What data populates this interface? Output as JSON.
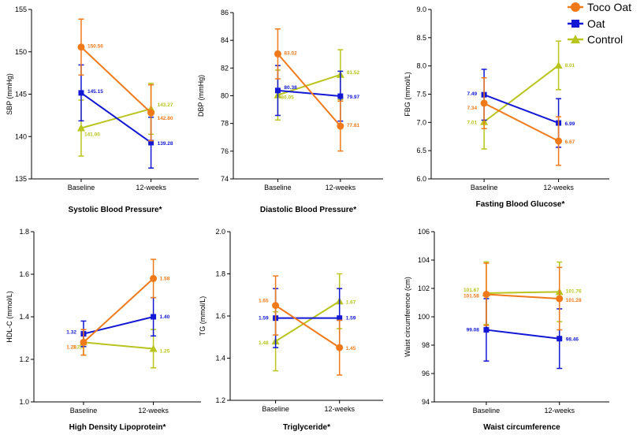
{
  "colors": {
    "Toco Oat": "#f07a1a",
    "Oat": "#1218d4",
    "Control": "#b9c41c"
  },
  "legend": [
    {
      "name": "Toco Oat",
      "marker": "circle"
    },
    {
      "name": "Oat",
      "marker": "square"
    },
    {
      "name": "Control",
      "marker": "triangle"
    }
  ],
  "chart_data": [
    {
      "type": "line",
      "title": "Systolic Blood Pressure*",
      "ylabel": "SBP (mmHg)",
      "categories": [
        "Baseline",
        "12-weeks"
      ],
      "ylim": [
        135,
        155
      ],
      "yticks": [
        135,
        140,
        145,
        150,
        155
      ],
      "yfmt": 0,
      "series": [
        {
          "name": "Toco Oat",
          "values": [
            150.56,
            142.8
          ],
          "labels": [
            "150.56",
            "142.80"
          ],
          "err": [
            3.3,
            3.3
          ]
        },
        {
          "name": "Oat",
          "values": [
            145.15,
            139.28
          ],
          "labels": [
            "145.15",
            "139.28"
          ],
          "err": [
            3.3,
            3.0
          ]
        },
        {
          "name": "Control",
          "values": [
            141.0,
            143.27
          ],
          "labels": [
            "141.00",
            "143.27"
          ],
          "err": [
            3.3,
            3.0
          ]
        }
      ]
    },
    {
      "type": "line",
      "title": "Diastolic Blood Pressure*",
      "ylabel": "DBP (mmHg)",
      "categories": [
        "Baseline",
        "12-weeks"
      ],
      "ylim": [
        74,
        86
      ],
      "yticks": [
        74,
        76,
        78,
        80,
        82,
        84,
        86
      ],
      "yfmt": 0,
      "series": [
        {
          "name": "Toco Oat",
          "values": [
            83.02,
            77.81
          ],
          "labels": [
            "83.02",
            "77.81"
          ],
          "err": [
            1.8,
            1.8
          ]
        },
        {
          "name": "Oat",
          "values": [
            80.38,
            79.97
          ],
          "labels": [
            "80.38",
            "79.97"
          ],
          "err": [
            1.8,
            1.8
          ]
        },
        {
          "name": "Control",
          "values": [
            80.05,
            81.52
          ],
          "labels": [
            "80.05",
            "81.52"
          ],
          "err": [
            1.8,
            1.8
          ]
        }
      ]
    },
    {
      "type": "line",
      "title": "Fasting Blood Glucose*",
      "ylabel": "FBG (mmol/L)",
      "categories": [
        "Baseline",
        "12-weeks"
      ],
      "ylim": [
        6.0,
        9.0
      ],
      "yticks": [
        6.0,
        6.5,
        7.0,
        7.5,
        8.0,
        8.5,
        9.0
      ],
      "yfmt": 1,
      "series": [
        {
          "name": "Toco Oat",
          "values": [
            7.34,
            6.67
          ],
          "labels": [
            "7.34",
            "6.67"
          ],
          "err": [
            0.45,
            0.43
          ]
        },
        {
          "name": "Oat",
          "values": [
            7.49,
            6.99
          ],
          "labels": [
            "7.49",
            "6.99"
          ],
          "err": [
            0.45,
            0.43
          ]
        },
        {
          "name": "Control",
          "values": [
            7.01,
            8.01
          ],
          "labels": [
            "7.01",
            "8.01"
          ],
          "err": [
            0.48,
            0.43
          ]
        }
      ]
    },
    {
      "type": "line",
      "title": "High Density Lipoprotein*",
      "ylabel": "HDL-C (mmol/L)",
      "categories": [
        "Baseline",
        "12-weeks"
      ],
      "ylim": [
        1.0,
        1.8
      ],
      "yticks": [
        1.0,
        1.2,
        1.4,
        1.6,
        1.8
      ],
      "yfmt": 1,
      "series": [
        {
          "name": "Toco Oat",
          "values": [
            1.28,
            1.58
          ],
          "labels": [
            "1.28",
            "1.58"
          ],
          "err": [
            0.06,
            0.09
          ]
        },
        {
          "name": "Oat",
          "values": [
            1.32,
            1.4
          ],
          "labels": [
            "1.32",
            "1.40"
          ],
          "err": [
            0.06,
            0.09
          ]
        },
        {
          "name": "Control",
          "values": [
            1.28,
            1.25
          ],
          "labels": [
            "1.28",
            "1.25"
          ],
          "err": [
            0.06,
            0.09
          ]
        }
      ]
    },
    {
      "type": "line",
      "title": "Triglyceride*",
      "ylabel": "TG (mmol/L)",
      "categories": [
        "Baseline",
        "12-weeks"
      ],
      "ylim": [
        1.2,
        2.0
      ],
      "yticks": [
        1.2,
        1.4,
        1.6,
        1.8,
        2.0
      ],
      "yfmt": 1,
      "series": [
        {
          "name": "Toco Oat",
          "values": [
            1.65,
            1.45
          ],
          "labels": [
            "1.65",
            "1.45"
          ],
          "err": [
            0.14,
            0.13
          ]
        },
        {
          "name": "Oat",
          "values": [
            1.59,
            1.59
          ],
          "labels": [
            "1.59",
            "1.59"
          ],
          "err": [
            0.14,
            0.14
          ]
        },
        {
          "name": "Control",
          "values": [
            1.48,
            1.67
          ],
          "labels": [
            "1.48",
            "1.67"
          ],
          "err": [
            0.14,
            0.13
          ]
        }
      ]
    },
    {
      "type": "line",
      "title": "Waist circumference",
      "ylabel": "Waist circumference (cm)",
      "categories": [
        "Baseline",
        "12-weeks"
      ],
      "ylim": [
        94,
        106
      ],
      "yticks": [
        94,
        96,
        98,
        100,
        102,
        104,
        106
      ],
      "yfmt": 0,
      "series": [
        {
          "name": "Toco Oat",
          "values": [
            101.58,
            101.28
          ],
          "labels": [
            "101.58",
            "101.28"
          ],
          "err": [
            2.2,
            2.2
          ]
        },
        {
          "name": "Oat",
          "values": [
            99.08,
            98.46
          ],
          "labels": [
            "99.08",
            "98.46"
          ],
          "err": [
            2.2,
            2.1
          ]
        },
        {
          "name": "Control",
          "values": [
            101.67,
            101.76
          ],
          "labels": [
            "101.67",
            "101.76"
          ],
          "err": [
            2.2,
            2.1
          ]
        }
      ]
    }
  ]
}
